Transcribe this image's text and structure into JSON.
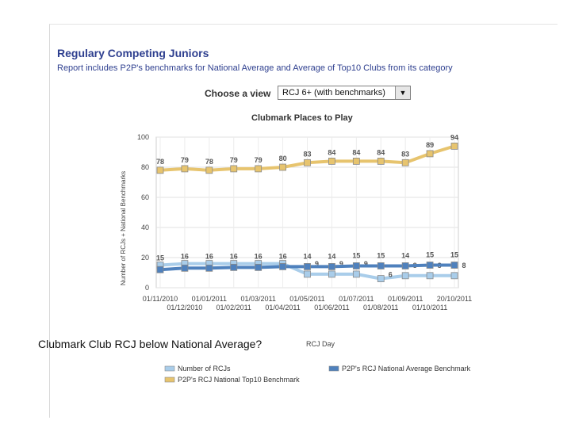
{
  "header": {
    "title": "Regulary Competing Juniors",
    "subtitle": "Report includes P2P's benchmarks for National Average and Average of Top10 Clubs from its category"
  },
  "controls": {
    "view_label": "Choose a view",
    "view_value": "RCJ 6+ (with benchmarks)"
  },
  "caption": "Clubmark Club RCJ below National Average?",
  "chart_data": {
    "type": "line",
    "title": "Clubmark Places to Play",
    "xlabel": "RCJ Day",
    "ylabel": "Number of RCJs + National Benchmarks",
    "ylim": [
      0,
      100
    ],
    "yticks": [
      0,
      20,
      40,
      60,
      80,
      100
    ],
    "grid": true,
    "legend_position": "bottom",
    "categories": [
      "01/11/2010",
      "01/12/2010",
      "01/01/2011",
      "01/02/2011",
      "01/03/2011",
      "01/04/2011",
      "01/05/2011",
      "01/06/2011",
      "01/07/2011",
      "01/08/2011",
      "01/09/2011",
      "01/10/2011",
      "20/10/2011"
    ],
    "series": [
      {
        "name": "Number of RCJs",
        "color": "#a9cdea",
        "values": [
          15,
          16,
          16,
          16,
          16,
          16,
          9,
          9,
          9,
          6,
          8,
          8,
          8
        ],
        "labels": [
          "15",
          "16",
          "16",
          "16",
          "16",
          "16",
          "9",
          "9",
          "9",
          "6",
          "8",
          "8",
          "8"
        ]
      },
      {
        "name": "P2P's RCJ National Average Benchmark",
        "color": "#4f81bd",
        "values": [
          12,
          13,
          13,
          13.5,
          13.5,
          14,
          14,
          14,
          14.5,
          14.5,
          14.5,
          15,
          15
        ],
        "labels": [
          "",
          "",
          "",
          "",
          "",
          "",
          "14",
          "14",
          "15",
          "15",
          "14",
          "15",
          "15"
        ]
      },
      {
        "name": "P2P's RCJ National Top10 Benchmark",
        "color": "#e7c46e",
        "values": [
          78,
          79,
          78,
          79,
          79,
          80,
          83,
          84,
          84,
          84,
          83,
          89,
          94
        ],
        "labels": [
          "78",
          "79",
          "78",
          "79",
          "79",
          "80",
          "83",
          "84",
          "84",
          "84",
          "83",
          "89",
          "94"
        ]
      }
    ]
  }
}
